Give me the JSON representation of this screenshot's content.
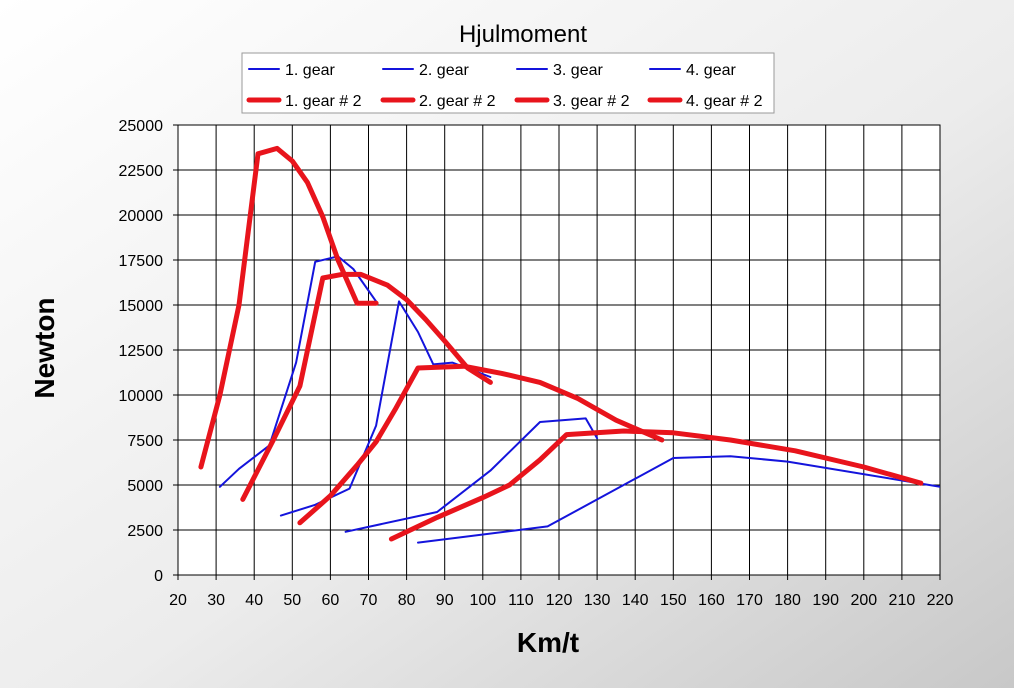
{
  "chart_data": {
    "type": "line",
    "title": "Hjulmoment",
    "xlabel": "Km/t",
    "ylabel": "Newton",
    "xlim": [
      20,
      220
    ],
    "ylim": [
      0,
      25000
    ],
    "xticks": [
      "20",
      "30",
      "40",
      "50",
      "60",
      "70",
      "80",
      "90",
      "100",
      "110",
      "120",
      "130",
      "140",
      "150",
      "160",
      "170",
      "180",
      "190",
      "200",
      "210",
      "220"
    ],
    "yticks": [
      "0",
      "2500",
      "5000",
      "7500",
      "10000",
      "12500",
      "15000",
      "17500",
      "20000",
      "22500",
      "25000"
    ],
    "grid": true,
    "legend_position": "top",
    "colors": {
      "blue": "#1414dc",
      "red": "#e8141c",
      "plot_bg": "#ffffff",
      "page_bg_light": "#ffffff",
      "page_bg_dark": "#c8c8c8"
    },
    "series": [
      {
        "name": "1. gear",
        "color": "blue",
        "width": 2,
        "x": [
          31,
          36,
          44,
          51,
          56,
          62,
          66,
          72
        ],
        "y": [
          4900,
          5900,
          7200,
          11800,
          17400,
          17700,
          17000,
          15200
        ]
      },
      {
        "name": "2. gear",
        "color": "blue",
        "width": 2,
        "x": [
          47,
          56,
          65,
          72,
          78,
          83,
          87,
          92,
          102
        ],
        "y": [
          3300,
          3900,
          4800,
          8300,
          15200,
          13500,
          11700,
          11800,
          11000
        ]
      },
      {
        "name": "3. gear",
        "color": "blue",
        "width": 2,
        "x": [
          64,
          88,
          102,
          115,
          127,
          130
        ],
        "y": [
          2400,
          3500,
          5800,
          8500,
          8700,
          7600
        ]
      },
      {
        "name": "4. gear",
        "color": "blue",
        "width": 2,
        "x": [
          83,
          117,
          150,
          165,
          180,
          220
        ],
        "y": [
          1800,
          2700,
          6500,
          6600,
          6300,
          4900
        ]
      },
      {
        "name": "1. gear # 2",
        "color": "red",
        "width": 5,
        "x": [
          26,
          31,
          36,
          41,
          46,
          50,
          54,
          58,
          62,
          67,
          72
        ],
        "y": [
          6000,
          10000,
          15000,
          23400,
          23700,
          23000,
          21800,
          19900,
          17500,
          15100,
          15100
        ]
      },
      {
        "name": "2. gear # 2",
        "color": "red",
        "width": 5,
        "x": [
          37,
          45,
          52,
          58,
          63,
          68,
          75,
          80,
          85,
          90,
          96,
          102
        ],
        "y": [
          4200,
          7500,
          10500,
          16500,
          16700,
          16700,
          16100,
          15300,
          14200,
          13000,
          11500,
          10700
        ]
      },
      {
        "name": "3. gear # 2",
        "color": "red",
        "width": 5,
        "x": [
          52,
          60,
          67,
          72,
          77,
          83,
          95,
          105,
          115,
          125,
          135,
          147
        ],
        "y": [
          2900,
          4400,
          6100,
          7400,
          9200,
          11500,
          11600,
          11200,
          10700,
          9800,
          8600,
          7500
        ]
      },
      {
        "name": "4. gear # 2",
        "color": "red",
        "width": 5,
        "x": [
          76,
          88,
          100,
          107,
          115,
          122,
          137,
          150,
          165,
          182,
          200,
          215
        ],
        "y": [
          2000,
          3200,
          4300,
          5000,
          6400,
          7800,
          8000,
          7900,
          7500,
          6900,
          6000,
          5100
        ]
      }
    ]
  }
}
